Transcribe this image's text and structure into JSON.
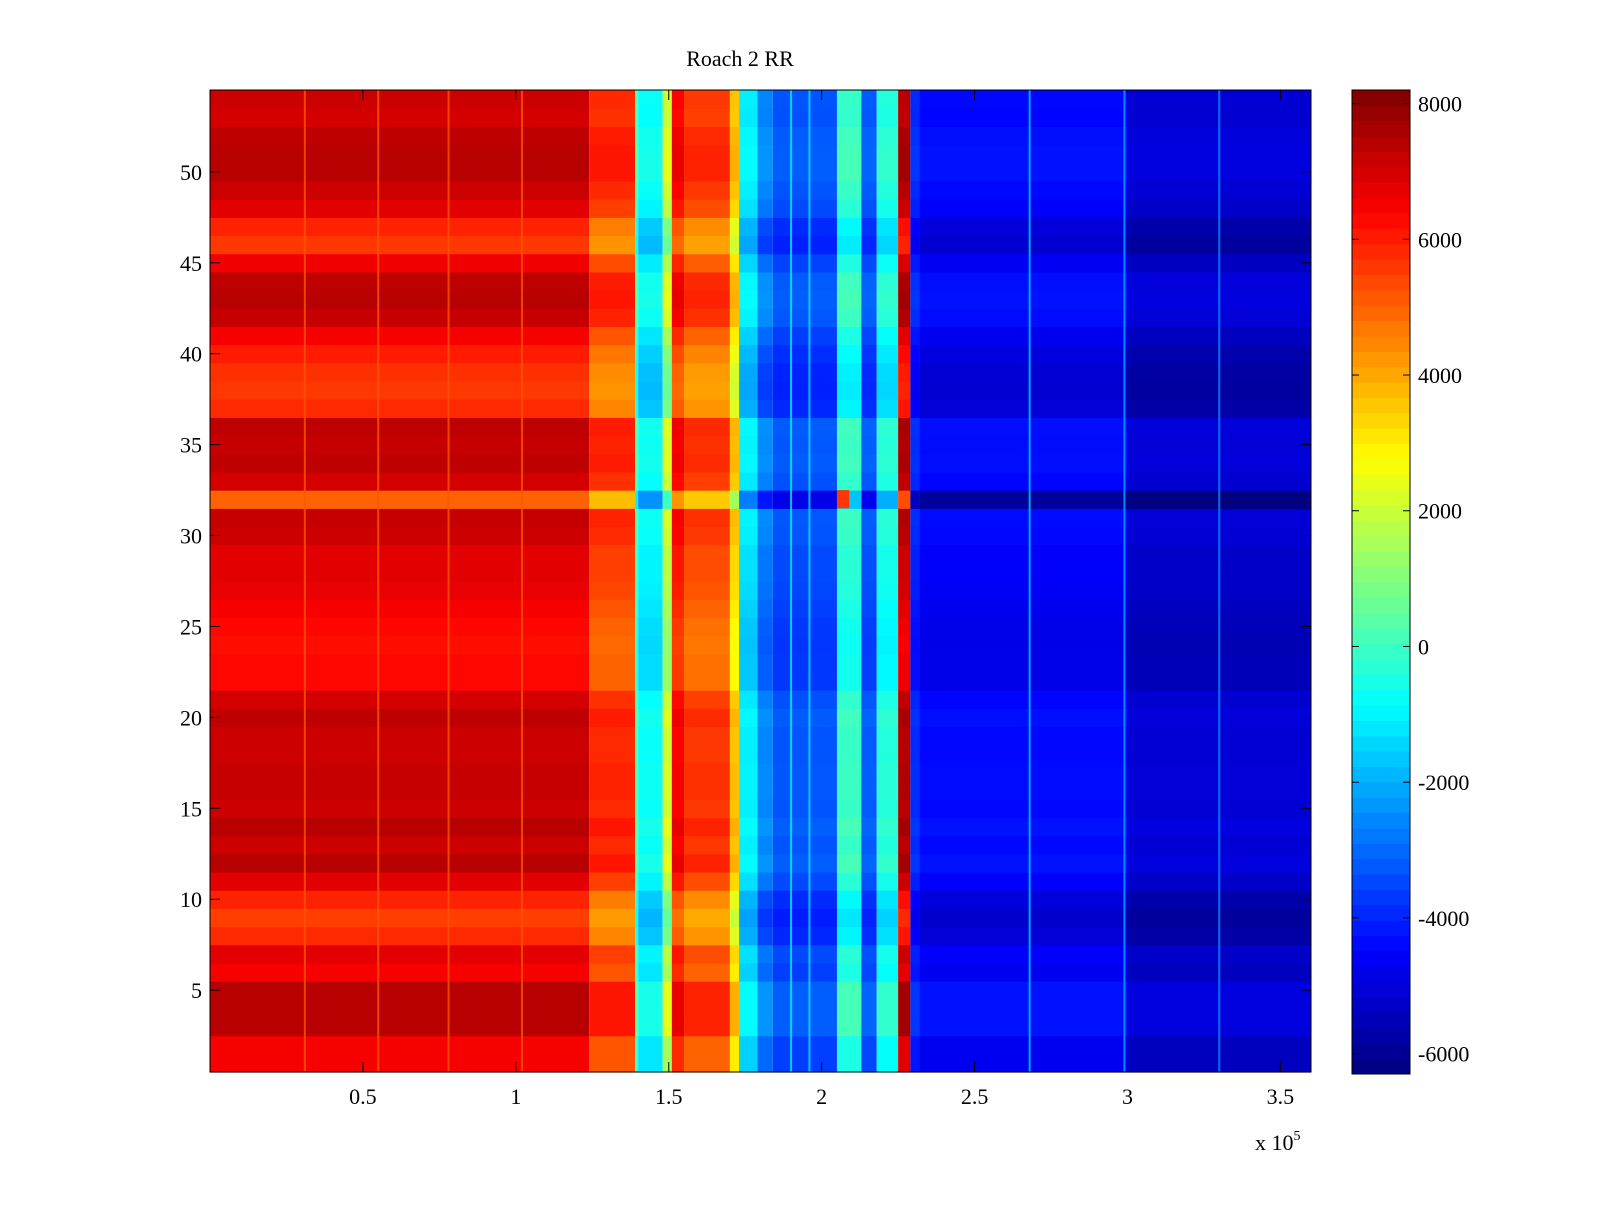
{
  "chart_data": {
    "type": "heatmap",
    "title": "Roach 2 RR",
    "xlabel": "",
    "ylabel": "",
    "x_range": [
      0,
      360000
    ],
    "y_range": [
      0.5,
      54.5
    ],
    "x_ticks": [
      {
        "value": 50000,
        "label": "0.5"
      },
      {
        "value": 100000,
        "label": "1"
      },
      {
        "value": 150000,
        "label": "1.5"
      },
      {
        "value": 200000,
        "label": "2"
      },
      {
        "value": 250000,
        "label": "2.5"
      },
      {
        "value": 300000,
        "label": "3"
      },
      {
        "value": 350000,
        "label": "3.5"
      }
    ],
    "x_exponent": {
      "base": "x 10",
      "power": "5"
    },
    "y_ticks": [
      {
        "value": 5,
        "label": "5"
      },
      {
        "value": 10,
        "label": "10"
      },
      {
        "value": 15,
        "label": "15"
      },
      {
        "value": 20,
        "label": "20"
      },
      {
        "value": 25,
        "label": "25"
      },
      {
        "value": 30,
        "label": "30"
      },
      {
        "value": 35,
        "label": "35"
      },
      {
        "value": 40,
        "label": "40"
      },
      {
        "value": 45,
        "label": "45"
      },
      {
        "value": 50,
        "label": "50"
      }
    ],
    "colorbar": {
      "colormap": "jet",
      "range": [
        -6300,
        8200
      ],
      "ticks": [
        {
          "value": 8000,
          "label": "8000"
        },
        {
          "value": 6000,
          "label": "6000"
        },
        {
          "value": 4000,
          "label": "4000"
        },
        {
          "value": 2000,
          "label": "2000"
        },
        {
          "value": 0,
          "label": "0"
        },
        {
          "value": -2000,
          "label": "-2000"
        },
        {
          "value": -4000,
          "label": "-4000"
        },
        {
          "value": -6000,
          "label": "-6000"
        }
      ]
    },
    "rows": 54,
    "column_profile": [
      {
        "x_start": 0,
        "x_end": 124000,
        "value": 6500
      },
      {
        "x_start": 124000,
        "x_end": 139000,
        "value": 5200
      },
      {
        "x_start": 139000,
        "x_end": 140000,
        "value": 0
      },
      {
        "x_start": 140000,
        "x_end": 148000,
        "value": -1200
      },
      {
        "x_start": 148000,
        "x_end": 151000,
        "value": 1500
      },
      {
        "x_start": 151000,
        "x_end": 155000,
        "value": 5800
      },
      {
        "x_start": 155000,
        "x_end": 170000,
        "value": 5000
      },
      {
        "x_start": 170000,
        "x_end": 173000,
        "value": 3000
      },
      {
        "x_start": 173000,
        "x_end": 179000,
        "value": -1500
      },
      {
        "x_start": 179000,
        "x_end": 184000,
        "value": -3000
      },
      {
        "x_start": 184000,
        "x_end": 205000,
        "value": -3600
      },
      {
        "x_start": 205000,
        "x_end": 213000,
        "value": -500
      },
      {
        "x_start": 213000,
        "x_end": 218000,
        "value": -3500
      },
      {
        "x_start": 218000,
        "x_end": 225000,
        "value": -800
      },
      {
        "x_start": 225000,
        "x_end": 229000,
        "value": 6800
      },
      {
        "x_start": 229000,
        "x_end": 232000,
        "value": -4200
      },
      {
        "x_start": 232000,
        "x_end": 300000,
        "value": -4700
      },
      {
        "x_start": 300000,
        "x_end": 360000,
        "value": -5400
      }
    ],
    "row_offsets": [
      0,
      0,
      900,
      900,
      900,
      0,
      300,
      -700,
      -1000,
      -600,
      300,
      900,
      600,
      900,
      600,
      700,
      700,
      600,
      600,
      800,
      500,
      -200,
      -200,
      -300,
      -200,
      0,
      200,
      300,
      300,
      600,
      700,
      -1500,
      500,
      800,
      700,
      800,
      -700,
      -900,
      -800,
      -500,
      0,
      700,
      900,
      800,
      100,
      -900,
      -600,
      300,
      600,
      900,
      900,
      800,
      500,
      600
    ],
    "row_anomaly": {
      "row": 32,
      "x_start": 205000,
      "x_end": 209000,
      "value": 5600
    },
    "thin_lines": [
      {
        "x": 31000,
        "value": 5200
      },
      {
        "x": 55000,
        "value": 5200
      },
      {
        "x": 78000,
        "value": 5200
      },
      {
        "x": 102000,
        "value": 5200
      },
      {
        "x": 268000,
        "value": -1500
      },
      {
        "x": 299000,
        "value": -2000
      },
      {
        "x": 330000,
        "value": -2500
      },
      {
        "x": 190000,
        "value": -1000
      },
      {
        "x": 196000,
        "value": -1200
      }
    ]
  }
}
